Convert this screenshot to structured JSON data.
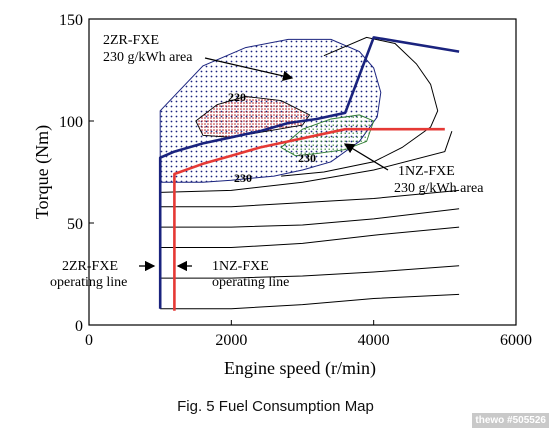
{
  "chart_data": {
    "type": "line",
    "title": "",
    "xlabel": "Engine speed (r/min)",
    "ylabel": "Torque (Nm)",
    "xlim": [
      0,
      6000
    ],
    "ylim": [
      0,
      150
    ],
    "xticks": [
      0,
      2000,
      4000,
      6000
    ],
    "yticks": [
      0,
      50,
      100,
      150
    ],
    "x_tick_labels": [
      "0",
      "2000",
      "4000",
      "6000"
    ],
    "y_tick_labels": [
      "0",
      "50",
      "100",
      "150"
    ],
    "grid": false,
    "series": [
      {
        "name": "2ZR-FXE operating line",
        "color": "#1a237e",
        "points": [
          [
            1000,
            8
          ],
          [
            1000,
            82
          ],
          [
            1200,
            85
          ],
          [
            1600,
            89
          ],
          [
            2000,
            92
          ],
          [
            2400,
            95
          ],
          [
            2800,
            99
          ],
          [
            3200,
            101
          ],
          [
            3600,
            104
          ],
          [
            4000,
            141
          ],
          [
            5200,
            134
          ]
        ]
      },
      {
        "name": "1NZ-FXE operating line",
        "color": "#e53935",
        "points": [
          [
            1200,
            7
          ],
          [
            1200,
            74
          ],
          [
            1600,
            79
          ],
          [
            2000,
            83
          ],
          [
            2400,
            87
          ],
          [
            2800,
            90
          ],
          [
            3200,
            93
          ],
          [
            3600,
            96
          ],
          [
            4000,
            96
          ],
          [
            4400,
            96
          ],
          [
            5000,
            96
          ]
        ]
      }
    ],
    "regions": [
      {
        "name": "2ZR-FXE 230 g/kWh area",
        "points": [
          [
            1000,
            105
          ],
          [
            1600,
            127
          ],
          [
            2200,
            136
          ],
          [
            2800,
            140
          ],
          [
            3400,
            140
          ],
          [
            3800,
            134
          ],
          [
            4000,
            126
          ],
          [
            4100,
            114
          ],
          [
            4050,
            102
          ],
          [
            3800,
            90
          ],
          [
            3400,
            80
          ],
          [
            3000,
            76
          ],
          [
            2600,
            73
          ],
          [
            2000,
            71
          ],
          [
            1600,
            70
          ],
          [
            1000,
            70
          ]
        ]
      },
      {
        "name": "220",
        "points": [
          [
            1500,
            100
          ],
          [
            1800,
            108
          ],
          [
            2200,
            112
          ],
          [
            2700,
            110
          ],
          [
            3100,
            103
          ],
          [
            3000,
            98
          ],
          [
            2500,
            95
          ],
          [
            2000,
            92
          ],
          [
            1600,
            93
          ],
          [
            1500,
            100
          ]
        ]
      },
      {
        "name": "1NZ-FXE 230 g/kWh area",
        "points": [
          [
            2700,
            87
          ],
          [
            3000,
            96
          ],
          [
            3400,
            101
          ],
          [
            3800,
            103
          ],
          [
            4000,
            100
          ],
          [
            3900,
            90
          ],
          [
            3600,
            86
          ],
          [
            3200,
            84
          ],
          [
            2900,
            83
          ],
          [
            2700,
            87
          ]
        ]
      }
    ],
    "contours": [
      [
        [
          1000,
          8
        ],
        [
          2000,
          8
        ],
        [
          3000,
          10
        ],
        [
          4000,
          13
        ],
        [
          5200,
          15
        ]
      ],
      [
        [
          1000,
          23
        ],
        [
          2000,
          23
        ],
        [
          3000,
          24
        ],
        [
          4000,
          26
        ],
        [
          5200,
          29
        ]
      ],
      [
        [
          1000,
          38
        ],
        [
          2000,
          38
        ],
        [
          3000,
          40
        ],
        [
          4000,
          44
        ],
        [
          5200,
          48
        ]
      ],
      [
        [
          1000,
          48
        ],
        [
          2000,
          48
        ],
        [
          3000,
          49
        ],
        [
          4000,
          52
        ],
        [
          5200,
          57
        ]
      ],
      [
        [
          1000,
          58
        ],
        [
          2000,
          58
        ],
        [
          3000,
          60
        ],
        [
          4000,
          62
        ],
        [
          5200,
          66
        ]
      ],
      [
        [
          1000,
          65
        ],
        [
          2000,
          66
        ],
        [
          3000,
          70
        ],
        [
          4000,
          76
        ],
        [
          5000,
          85
        ],
        [
          5100,
          95
        ]
      ],
      [
        [
          3300,
          132
        ],
        [
          3900,
          141
        ],
        [
          4300,
          138
        ],
        [
          4600,
          128
        ],
        [
          4800,
          118
        ],
        [
          4900,
          105
        ],
        [
          4800,
          97
        ],
        [
          4400,
          87
        ],
        [
          4000,
          80
        ],
        [
          3300,
          75
        ],
        [
          2700,
          73
        ]
      ]
    ],
    "annotations": {
      "zr_area_line1": "2ZR-FXE",
      "zr_area_line2": "230 g/kWh area",
      "nz_area_line1": "1NZ-FXE",
      "nz_area_line2": "230 g/kWh area",
      "label_220": "220",
      "label_230_a": "230",
      "label_230_b": "230",
      "zr_line_label1": "2ZR-FXE",
      "zr_line_label2": "operating line",
      "nz_line_label1": "1NZ-FXE",
      "nz_line_label2": "operating line"
    }
  },
  "caption": "Fig. 5 Fuel Consumption Map",
  "watermark": "thewo #505526"
}
